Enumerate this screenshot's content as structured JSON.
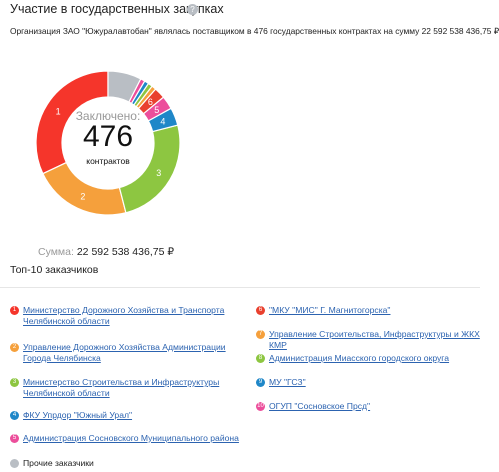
{
  "chart_data": {
    "type": "pie",
    "title": "Участие в государственных закупках",
    "help_icon": "?",
    "description": "Организация ЗАО \"Южуралавтобан\" являлась поставщиком в 476 государственных контрактах на сумму 22 592 538 436,75 ₽",
    "center_label": "Заключено:",
    "center_value": 476,
    "center_unit": "контрактов",
    "sum_label": "Сумма:",
    "sum_value": "22 592 538 436,75 ₽",
    "list_title": "Топ-10 заказчиков",
    "categories": [
      "Министерство Дорожного Хозяйства и Транспорта Челябинской области",
      "Управление Дорожного Хозяйства Администрации Города Челябинска",
      "Министерство Строительства и Инфраструктуры Челябинской области",
      "ФКУ Упрдор \"Южный Урал\"",
      "Администрация Сосновского Муниципального района",
      "\"МКУ \"МИС\" Г. Магнитогорска\"",
      "Управление Строительства, Инфраструктуры и ЖКХ КМР",
      "Администрация Миасского городского округа",
      "МУ \"ГСЗ\"",
      "ОГУП \"Сосновское Прсд\"",
      "Прочие заказчики"
    ],
    "markers": [
      "1",
      "2",
      "3",
      "4",
      "5",
      "6",
      "7",
      "8",
      "9",
      "10",
      null
    ],
    "values": [
      32,
      22,
      25,
      4,
      3,
      2.5,
      1,
      1,
      1,
      1,
      7.5
    ],
    "colors": [
      "#f5352b",
      "#f5a03c",
      "#8dc641",
      "#1f87c8",
      "#ec4e9b",
      "#e9402e",
      "#f5a03c",
      "#8dc641",
      "#1f87c8",
      "#ec4e9b",
      "#b9bec4"
    ]
  }
}
